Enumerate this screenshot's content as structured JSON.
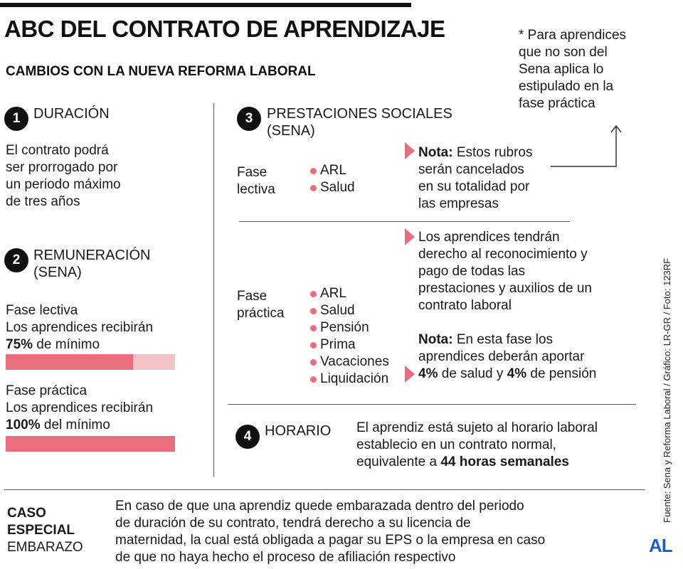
{
  "title": "ABC DEL CONTRATO DE APRENDIZAJE",
  "subtitle": "CAMBIOS CON LA NUEVA REFORMA LABORAL",
  "footnote": [
    "* Para aprendices",
    "que no son del",
    "Sena aplica lo",
    "estipulado en la",
    "fase práctica"
  ],
  "section1": {
    "number": "1",
    "heading": "DURACIÓN",
    "body": [
      "El contrato podrá",
      "ser prorrogado por",
      "un periodo máximo",
      "de tres años"
    ]
  },
  "section2": {
    "number": "2",
    "heading": [
      "REMUNERACIÓN",
      "(SENA)"
    ],
    "lectiva": {
      "label": "Fase lectiva",
      "line": "Los aprendices recibirán",
      "pct": "75%",
      "rest": " de mínimo",
      "fraction": 0.75
    },
    "practica": {
      "label": "Fase práctica",
      "line": "Los aprendices recibirán",
      "pct": "100%",
      "rest": " del mínimo",
      "fraction": 1.0
    }
  },
  "section3": {
    "number": "3",
    "heading": [
      "PRESTACIONES SOCIALES",
      "(SENA)"
    ],
    "lectiva": {
      "label": [
        "Fase",
        "lectiva"
      ],
      "items": [
        "ARL",
        "Salud"
      ],
      "note_bold": "Nota:",
      "note": [
        " Estos rubros",
        "serán cancelados",
        "en su totalidad por",
        "las empresas"
      ]
    },
    "practica": {
      "label": [
        "Fase",
        "práctica"
      ],
      "items": [
        "ARL",
        "Salud",
        "Pensión",
        "Prima",
        "Vacaciones",
        "Liquidación"
      ],
      "text": [
        "Los aprendices tendrán",
        "derecho al reconocimiento y",
        "pago de todas las",
        "prestaciones y auxilios de un",
        "contrato laboral"
      ],
      "note_bold": "Nota:",
      "note": [
        " En esta fase los",
        "aprendices deberán aportar"
      ],
      "pct1": "4%",
      "mid": " de salud y ",
      "pct2": "4%",
      "end": " de pensión"
    }
  },
  "section4": {
    "number": "4",
    "heading": "HORARIO",
    "body": [
      "El aprendiz está sujeto al horario laboral",
      "establecio en un contrato normal,"
    ],
    "last_pre": "equivalente a ",
    "last_bold": "44 horas semanales"
  },
  "special": {
    "label": [
      "CASO",
      "ESPECIAL"
    ],
    "sub": "EMBARAZO",
    "body": [
      "En caso de que una aprendiz quede embarazada dentro del periodo",
      "de duración de su contrato, tendrá derecho a su licencia de",
      "maternidad, la cual está obligada a pagar su EPS o la empresa en caso",
      "de que no haya hecho el proceso de afiliación respectivo"
    ]
  },
  "source": "Fuente: Sena y Reforma Laboral / Gráfico: LR-GR / Foto: 123RF",
  "logo": "AL",
  "colors": {
    "accent": "#ea6d7e",
    "accent_light": "#f2c2c9",
    "logo": "#1f5fbf",
    "text": "#1a1a1a"
  }
}
